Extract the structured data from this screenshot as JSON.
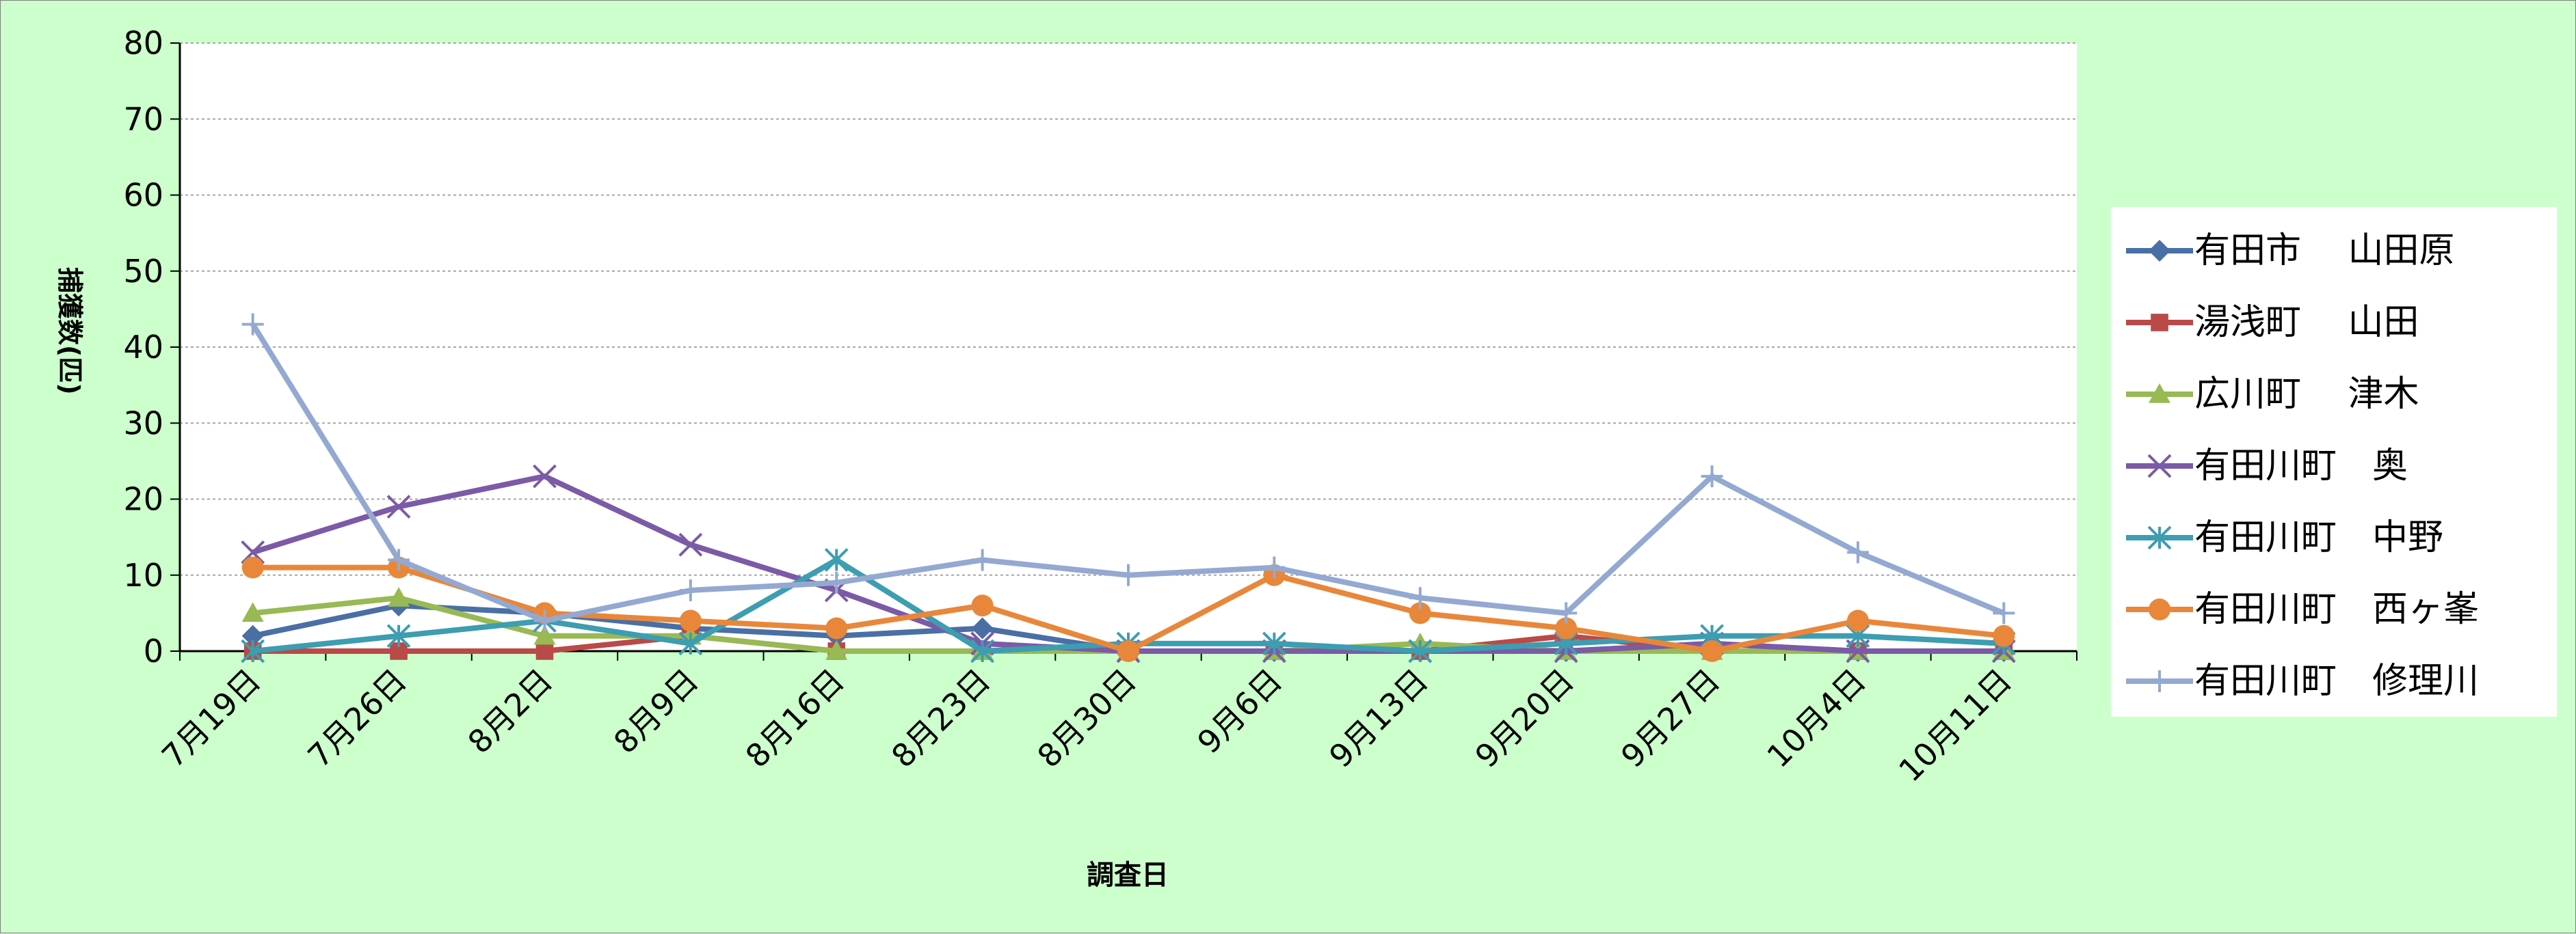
{
  "chart_data": {
    "type": "line",
    "ylabel": "捕獲数(匹)",
    "xlabel": "調査日",
    "ylim": [
      0,
      80
    ],
    "yticks": [
      0,
      10,
      20,
      30,
      40,
      50,
      60,
      70,
      80
    ],
    "grid": true,
    "legend_position": "right",
    "plot_background": "#ffffff",
    "page_background": "#ccffcc",
    "categories": [
      "7月19日",
      "7月26日",
      "8月2日",
      "8月9日",
      "8月16日",
      "8月23日",
      "8月30日",
      "9月6日",
      "9月13日",
      "9月20日",
      "9月27日",
      "10月4日",
      "10月11日"
    ],
    "series": [
      {
        "name": "有田市　 山田原",
        "color": "#4a6fa5",
        "marker": "diamond",
        "values": [
          2,
          6,
          5,
          3,
          2,
          3,
          0,
          0,
          0,
          0,
          1,
          0,
          0
        ]
      },
      {
        "name": "湯浅町　 山田",
        "color": "#b94a48",
        "marker": "square",
        "values": [
          0,
          0,
          0,
          2,
          0,
          0,
          0,
          0,
          0,
          2,
          0,
          0,
          0
        ]
      },
      {
        "name": "広川町　 津木",
        "color": "#98b954",
        "marker": "triangle",
        "values": [
          5,
          7,
          2,
          2,
          0,
          0,
          0,
          0,
          1,
          0,
          0,
          0,
          0
        ]
      },
      {
        "name": "有田川町　奥",
        "color": "#7b5aa6",
        "marker": "x",
        "values": [
          13,
          19,
          23,
          14,
          8,
          1,
          0,
          0,
          0,
          0,
          1,
          0,
          0
        ]
      },
      {
        "name": "有田川町　中野",
        "color": "#3d9db1",
        "marker": "star",
        "values": [
          0,
          2,
          4,
          1,
          12,
          0,
          1,
          1,
          0,
          1,
          2,
          2,
          1
        ]
      },
      {
        "name": "有田川町　西ヶ峯",
        "color": "#e8873a",
        "marker": "circle",
        "values": [
          11,
          11,
          5,
          4,
          3,
          6,
          0,
          10,
          5,
          3,
          0,
          4,
          2
        ]
      },
      {
        "name": "有田川町　修理川",
        "color": "#94a9d1",
        "marker": "plus",
        "values": [
          43,
          12,
          4,
          8,
          9,
          12,
          10,
          11,
          7,
          5,
          23,
          13,
          5
        ]
      }
    ]
  }
}
